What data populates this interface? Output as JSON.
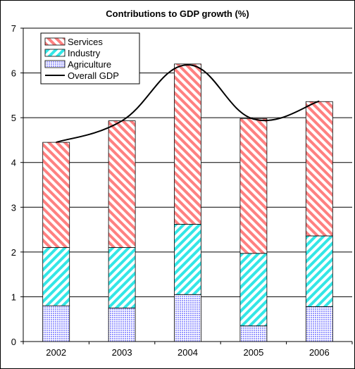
{
  "chart_data": {
    "type": "bar",
    "title": "Contributions to GDP growth (%)",
    "xlabel": "",
    "ylabel": "",
    "categories": [
      "2002",
      "2003",
      "2004",
      "2005",
      "2006"
    ],
    "ylim": [
      0,
      7
    ],
    "yticks": [
      0,
      1,
      2,
      3,
      4,
      5,
      6,
      7
    ],
    "stacked": true,
    "grid": true,
    "legend_position": "top-left",
    "series": [
      {
        "name": "Agriculture",
        "kind": "bar",
        "values": [
          0.8,
          0.75,
          1.05,
          0.35,
          0.78
        ],
        "color": "#9999ff",
        "pattern": "dots"
      },
      {
        "name": "Industry",
        "kind": "bar",
        "values": [
          1.3,
          1.35,
          1.57,
          1.62,
          1.58
        ],
        "color": "#33e6e6",
        "pattern": "diagonal"
      },
      {
        "name": "Services",
        "kind": "bar",
        "values": [
          2.35,
          2.83,
          3.58,
          3.01,
          3.0
        ],
        "color": "#ff8080",
        "pattern": "diagonal"
      },
      {
        "name": "Overall GDP",
        "kind": "line",
        "values": [
          4.45,
          4.93,
          6.18,
          4.97,
          5.37
        ],
        "color": "#000000"
      }
    ],
    "legend_order": [
      "Services",
      "Industry",
      "Agriculture",
      "Overall GDP"
    ]
  }
}
